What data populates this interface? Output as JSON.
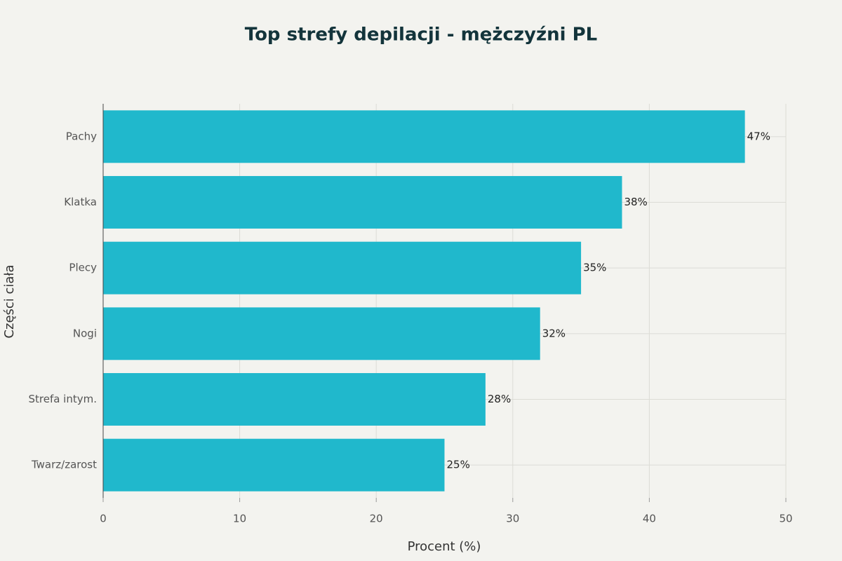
{
  "chart_data": {
    "type": "bar",
    "orientation": "horizontal",
    "title": "Top strefy depilacji - mężczyźni PL",
    "x_label": "Procent (%)",
    "y_label": "Części ciała",
    "categories": [
      "Pachy",
      "Klatka",
      "Plecy",
      "Nogi",
      "Strefa intym.",
      "Twarz/zarost"
    ],
    "values": [
      47,
      38,
      35,
      32,
      28,
      25
    ],
    "value_labels": [
      "47%",
      "38%",
      "35%",
      "32%",
      "28%",
      "25%"
    ],
    "color": "#20b8cc",
    "xlim": [
      0,
      50
    ],
    "xticks": [
      0,
      10,
      20,
      30,
      40,
      50
    ],
    "grid": true
  }
}
